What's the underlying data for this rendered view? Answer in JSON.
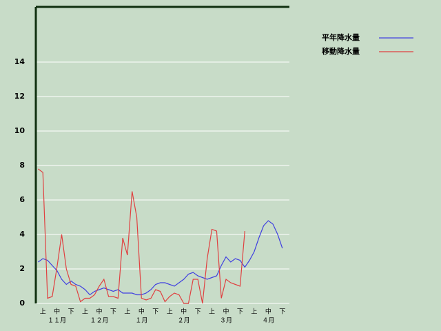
{
  "chart_data": {
    "type": "line",
    "categories": [
      null,
      "上",
      null,
      null,
      "中",
      null,
      null,
      "下",
      null,
      null,
      "上",
      null,
      null,
      "中",
      null,
      null,
      "下",
      null,
      null,
      "上",
      null,
      null,
      "中",
      null,
      null,
      "下",
      null,
      null,
      "上",
      null,
      null,
      "中",
      null,
      null,
      "下",
      null,
      null,
      "上",
      null,
      null,
      "中",
      null,
      null,
      "下",
      null,
      null,
      "上",
      null,
      null,
      "中",
      null,
      null,
      "下",
      null
    ],
    "month_labels": [
      "１１月",
      "１２月",
      "１月",
      "２月",
      "３月",
      "４月"
    ],
    "series": [
      {
        "name": "平年降水量",
        "color": "#4040e0",
        "values": [
          2.4,
          2.6,
          2.5,
          2.2,
          1.9,
          1.4,
          1.1,
          1.3,
          1.1,
          1.0,
          0.8,
          0.5,
          0.7,
          0.8,
          0.9,
          0.8,
          0.7,
          0.8,
          0.6,
          0.6,
          0.6,
          0.5,
          0.5,
          0.6,
          0.8,
          1.1,
          1.2,
          1.2,
          1.1,
          1.0,
          1.2,
          1.4,
          1.7,
          1.8,
          1.6,
          1.5,
          1.4,
          1.5,
          1.6,
          2.2,
          2.7,
          2.4,
          2.6,
          2.5,
          2.1,
          2.5,
          3.0,
          3.8,
          4.5,
          4.8,
          4.6,
          4.0,
          3.2,
          null
        ]
      },
      {
        "name": "移動降水量",
        "color": "#e04040",
        "values": [
          7.8,
          7.6,
          0.3,
          0.4,
          2.1,
          4.0,
          2.0,
          1.1,
          1.0,
          0.1,
          0.3,
          0.3,
          0.5,
          1.0,
          1.4,
          0.4,
          0.4,
          0.3,
          3.8,
          2.8,
          6.5,
          5.0,
          0.3,
          0.2,
          0.3,
          0.8,
          0.7,
          0.1,
          0.4,
          0.6,
          0.5,
          0.0,
          0.0,
          1.4,
          1.4,
          0.0,
          2.6,
          4.3,
          4.2,
          0.3,
          1.4,
          1.2,
          1.1,
          1.0,
          4.2,
          null,
          null,
          null,
          null,
          null,
          null,
          null,
          null,
          null
        ]
      }
    ],
    "ylim": [
      0,
      17.2
    ],
    "yticks": [
      0,
      2,
      4,
      6,
      8,
      10,
      12,
      14
    ],
    "grid": true
  }
}
